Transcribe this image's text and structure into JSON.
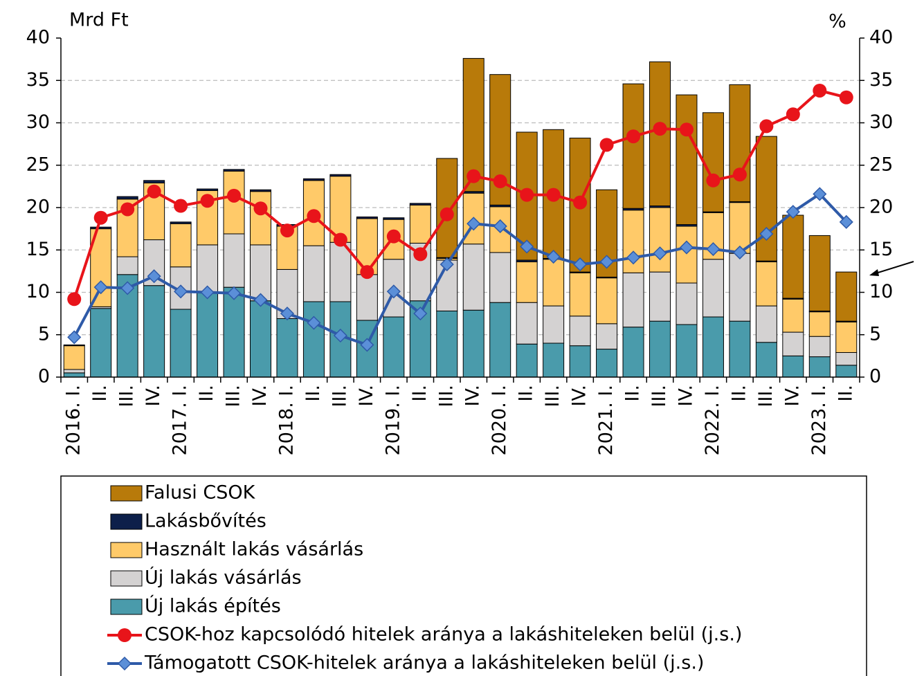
{
  "chart_data": {
    "type": "bar",
    "stacked": true,
    "y_label": "Mrd Ft",
    "y2_label": "%",
    "categories": [
      "2016. I.",
      "II.",
      "III.",
      "IV.",
      "2017. I.",
      "II.",
      "III.",
      "IV.",
      "2018. I.",
      "II.",
      "III.",
      "IV.",
      "2019. I.",
      "II.",
      "III.",
      "IV.",
      "2020. I.",
      "II.",
      "III.",
      "IV.",
      "2021. I.",
      "II.",
      "III.",
      "IV.",
      "2022. I.",
      "II.",
      "III.",
      "IV.",
      "2023. I.",
      "II."
    ],
    "ylim": [
      0,
      40
    ],
    "yticks": [
      0,
      5,
      10,
      15,
      20,
      25,
      30,
      35,
      40
    ],
    "y2lim": [
      0,
      40
    ],
    "y2ticks": [
      0,
      5,
      10,
      15,
      20,
      25,
      30,
      35,
      40
    ],
    "grid": true,
    "series": [
      {
        "name": "Új lakás építés",
        "type": "bar",
        "color": "#4a9bab",
        "values": [
          0.5,
          8.1,
          12.1,
          10.8,
          8.0,
          10.0,
          10.6,
          9.0,
          6.9,
          8.9,
          8.9,
          6.7,
          7.1,
          9.0,
          7.8,
          7.9,
          8.8,
          3.9,
          4.0,
          3.7,
          3.3,
          5.9,
          6.6,
          6.2,
          7.1,
          6.6,
          4.1,
          2.5,
          2.4,
          1.4
        ]
      },
      {
        "name": "Új lakás vásárlás",
        "type": "bar",
        "color": "#d4d2d2",
        "values": [
          0.4,
          0.2,
          2.1,
          5.4,
          5.0,
          5.6,
          6.3,
          6.6,
          5.8,
          6.6,
          7.0,
          5.4,
          6.8,
          6.8,
          6.0,
          7.8,
          5.9,
          4.9,
          4.4,
          3.5,
          3.0,
          6.4,
          5.8,
          4.9,
          6.8,
          8.0,
          4.3,
          2.8,
          2.4,
          1.5
        ]
      },
      {
        "name": "Használt lakás vásárlás",
        "type": "bar",
        "color": "#ffca69",
        "values": [
          2.8,
          9.2,
          6.8,
          6.7,
          5.1,
          6.4,
          7.4,
          6.3,
          5.1,
          7.7,
          7.8,
          6.6,
          4.7,
          4.5,
          0.2,
          6.0,
          5.4,
          4.8,
          5.5,
          5.1,
          5.4,
          7.4,
          7.6,
          6.7,
          5.5,
          6.0,
          5.2,
          3.9,
          2.9,
          3.6
        ]
      },
      {
        "name": "Lakásbővítés",
        "type": "bar",
        "color": "#0d1f4a",
        "values": [
          0.1,
          0.2,
          0.3,
          0.3,
          0.2,
          0.2,
          0.2,
          0.2,
          0.2,
          0.2,
          0.2,
          0.2,
          0.2,
          0.2,
          0.1,
          0.2,
          0.2,
          0.2,
          0.1,
          0.1,
          0.1,
          0.2,
          0.2,
          0.2,
          0.1,
          0.1,
          0.1,
          0.1,
          0.1,
          0.1
        ]
      },
      {
        "name": "Falusi CSOK",
        "type": "bar",
        "color": "#b87a0a",
        "values": [
          0,
          0,
          0,
          0,
          0,
          0,
          0,
          0,
          0,
          0,
          0,
          0,
          0,
          0,
          11.7,
          15.7,
          15.4,
          15.1,
          15.2,
          15.8,
          10.3,
          14.7,
          17.0,
          15.3,
          11.7,
          13.8,
          14.7,
          9.8,
          8.9,
          5.8
        ]
      },
      {
        "name": "CSOK-hoz kapcsolódó hitelek aránya a lakáshiteleken belül (j.s.)",
        "type": "line",
        "axis": "y2",
        "color": "#e8141a",
        "marker": "circle",
        "values": [
          9.2,
          18.8,
          19.8,
          21.9,
          20.2,
          20.8,
          21.4,
          19.9,
          17.3,
          19.0,
          16.2,
          12.4,
          16.6,
          14.5,
          19.2,
          23.7,
          23.1,
          21.5,
          21.5,
          20.6,
          27.4,
          28.4,
          29.3,
          29.2,
          23.2,
          23.9,
          29.6,
          31.0,
          33.8,
          33.0
        ]
      },
      {
        "name": "Támogatott CSOK-hitelek aránya a lakáshiteleken belül (j.s.)",
        "type": "line",
        "axis": "y2",
        "color": "#2e5aa8",
        "marker": "diamond",
        "values": [
          4.7,
          10.6,
          10.5,
          11.9,
          10.1,
          10.0,
          9.9,
          9.1,
          7.5,
          6.4,
          4.9,
          3.8,
          10.1,
          7.5,
          13.3,
          18.1,
          17.8,
          15.4,
          14.2,
          13.3,
          13.6,
          14.1,
          14.6,
          15.3,
          15.1,
          14.7,
          16.9,
          19.5,
          21.6,
          18.3
        ]
      }
    ]
  }
}
